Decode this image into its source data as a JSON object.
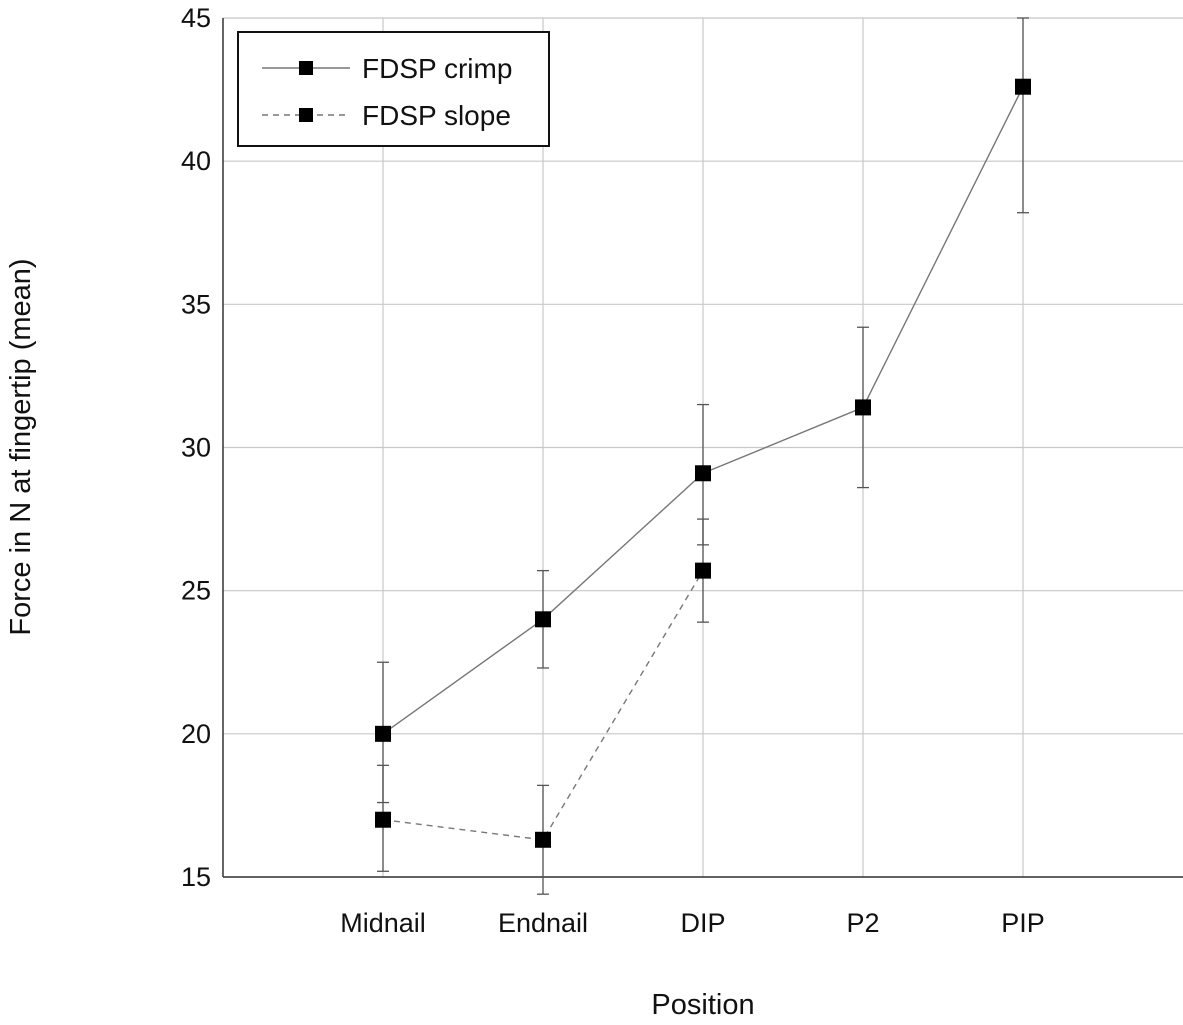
{
  "chart_data": {
    "type": "line",
    "xlabel": "Position",
    "ylabel": "Force in N at fingertip (mean)",
    "categories": [
      "Midnail",
      "Endnail",
      "DIP",
      "P2",
      "PIP"
    ],
    "ylim": [
      15,
      45
    ],
    "yticks": [
      15,
      20,
      25,
      30,
      35,
      40,
      45
    ],
    "grid": true,
    "legend_position": "top-left",
    "series": [
      {
        "name": "FDSP crimp",
        "line_style": "solid",
        "marker": "square",
        "values": [
          20.0,
          24.0,
          29.1,
          31.4,
          42.6
        ],
        "error_low": [
          17.6,
          22.3,
          26.6,
          28.6,
          38.2
        ],
        "error_high": [
          22.5,
          25.7,
          31.5,
          34.2,
          45.0
        ]
      },
      {
        "name": "FDSP slope",
        "line_style": "dashed",
        "marker": "square",
        "values": [
          17.0,
          16.3,
          25.7,
          null,
          null
        ],
        "error_low": [
          15.2,
          14.4,
          23.9,
          null,
          null
        ],
        "error_high": [
          18.9,
          18.2,
          27.5,
          null,
          null
        ]
      }
    ],
    "colors": {
      "line": "#777777",
      "marker": "#000000",
      "grid": "#c8c8c8",
      "axis": "#333333"
    }
  }
}
